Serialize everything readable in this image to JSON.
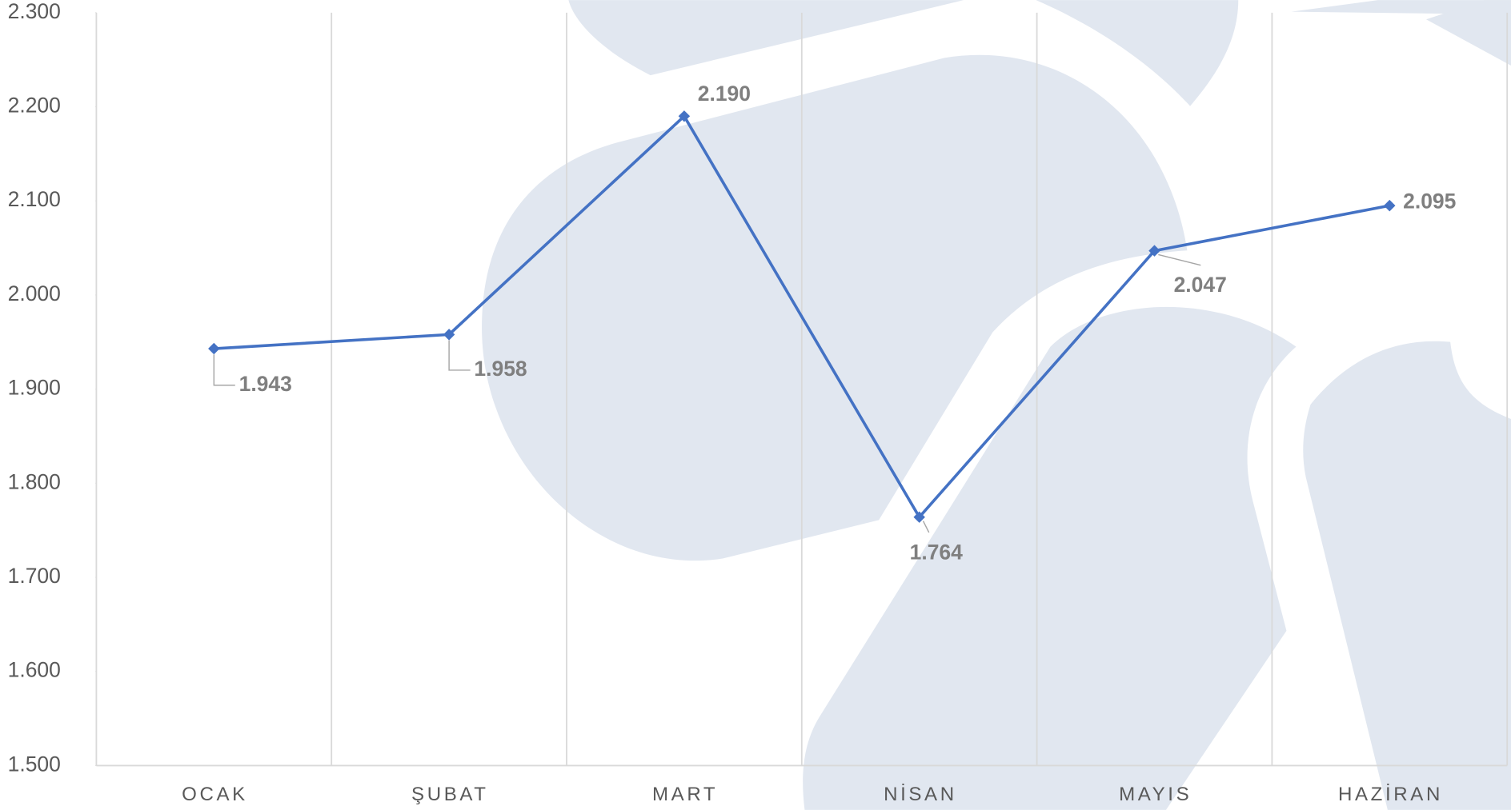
{
  "chart_data": {
    "type": "line",
    "categories": [
      "OCAK",
      "ŞUBAT",
      "MART",
      "NİSAN",
      "MAYIS",
      "HAZİRAN"
    ],
    "series": [
      {
        "color": "#4472c4",
        "values": [
          1943,
          1958,
          2190,
          1764,
          2047,
          2095
        ],
        "value_labels": [
          "1.943",
          "1.958",
          "2.190",
          "1.764",
          "2.047",
          "2.095"
        ]
      }
    ],
    "ylim": [
      1500,
      2300
    ],
    "yticks": [
      {
        "value": 1500,
        "label": "1.500"
      },
      {
        "value": 1600,
        "label": "1.600"
      },
      {
        "value": 1700,
        "label": "1.700"
      },
      {
        "value": 1800,
        "label": "1.800"
      },
      {
        "value": 1900,
        "label": "1.900"
      },
      {
        "value": 2000,
        "label": "2.000"
      },
      {
        "value": 2100,
        "label": "2.100"
      },
      {
        "value": 2200,
        "label": "2.200"
      },
      {
        "value": 2300,
        "label": "2.300"
      }
    ],
    "grid": true
  }
}
